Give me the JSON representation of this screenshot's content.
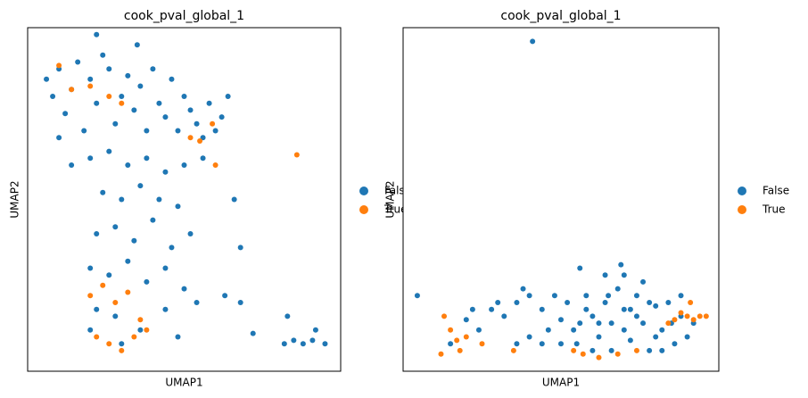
{
  "chart_data": [
    {
      "type": "scatter",
      "title": "cook_pval_global_1",
      "xlabel": "UMAP1",
      "ylabel": "UMAP2",
      "xlim": [
        0,
        100
      ],
      "ylim": [
        0,
        100
      ],
      "legend": "right",
      "series": [
        {
          "name": "False",
          "color": "#1f77b4",
          "x": [
            6,
            8,
            10,
            12,
            14,
            16,
            18,
            20,
            22,
            24,
            26,
            28,
            30,
            32,
            34,
            36,
            38,
            40,
            42,
            44,
            46,
            48,
            50,
            52,
            54,
            56,
            58,
            60,
            62,
            64,
            10,
            14,
            20,
            26,
            32,
            38,
            44,
            50,
            56,
            24,
            30,
            36,
            42,
            48,
            22,
            28,
            34,
            40,
            46,
            52,
            20,
            26,
            32,
            38,
            44,
            50,
            22,
            28,
            36,
            44,
            30,
            20,
            48,
            54,
            35,
            22,
            66,
            68,
            72,
            82,
            85,
            88,
            91,
            95,
            83,
            92,
            63,
            68
          ],
          "values": [
            85,
            80,
            88,
            75,
            82,
            90,
            70,
            85,
            78,
            92,
            88,
            72,
            80,
            86,
            76,
            83,
            70,
            88,
            78,
            74,
            85,
            70,
            80,
            76,
            72,
            68,
            78,
            70,
            74,
            80,
            68,
            60,
            62,
            64,
            60,
            62,
            58,
            60,
            62,
            52,
            50,
            54,
            50,
            48,
            40,
            42,
            38,
            44,
            36,
            40,
            30,
            28,
            32,
            26,
            30,
            24,
            18,
            16,
            12,
            18,
            8,
            12,
            10,
            20,
            95,
            98,
            50,
            36,
            11,
            8,
            9,
            8,
            9,
            8,
            16,
            12,
            22,
            20
          ]
        },
        {
          "name": "True",
          "color": "#ff7f0e",
          "x": [
            10,
            14,
            26,
            20,
            30,
            52,
            55,
            60,
            59,
            86,
            20,
            24,
            28,
            32,
            22,
            26,
            34,
            38,
            36,
            30
          ],
          "values": [
            89,
            82,
            80,
            83,
            78,
            68,
            67,
            60,
            72,
            63,
            22,
            25,
            20,
            23,
            10,
            8,
            10,
            12,
            15,
            6
          ]
        }
      ]
    },
    {
      "type": "scatter",
      "title": "cook_pval_global_1",
      "xlabel": "UMAP1",
      "ylabel": "UMAP2",
      "xlim": [
        0,
        100
      ],
      "ylim": [
        0,
        100
      ],
      "legend": "right",
      "series": [
        {
          "name": "False",
          "color": "#1f77b4",
          "x": [
            4.5,
            41,
            20,
            24,
            28,
            32,
            36,
            40,
            44,
            46,
            50,
            52,
            55,
            58,
            60,
            62,
            64,
            66,
            68,
            70,
            72,
            74,
            76,
            78,
            80,
            82,
            84,
            86,
            88,
            90,
            92,
            56,
            60,
            66,
            70,
            74,
            78,
            82,
            88,
            76,
            70,
            65,
            48,
            38,
            30,
            22,
            15,
            56,
            64,
            69,
            72,
            85,
            80,
            62,
            58,
            54,
            50,
            44,
            40,
            36
          ],
          "values": [
            22,
            96,
            15,
            12,
            18,
            16,
            20,
            22,
            18,
            12,
            15,
            20,
            8,
            22,
            16,
            10,
            20,
            14,
            24,
            18,
            9,
            22,
            14,
            6,
            19,
            12,
            20,
            8,
            16,
            10,
            14,
            14,
            6,
            6,
            12,
            16,
            20,
            6,
            22,
            26,
            28,
            22,
            22,
            24,
            20,
            18,
            8,
            30,
            28,
            31,
            18,
            14,
            10,
            14,
            18,
            12,
            8,
            8,
            10,
            8
          ]
        },
        {
          "name": "True",
          "color": "#ff7f0e",
          "x": [
            13,
            15,
            17,
            12,
            18,
            20,
            25,
            35,
            54,
            57,
            62,
            68,
            74,
            86,
            88,
            90,
            92,
            94,
            96,
            84,
            91
          ],
          "values": [
            16,
            12,
            9,
            5,
            6,
            10,
            8,
            6,
            6,
            5,
            4,
            5,
            6,
            15,
            17,
            16,
            15,
            16,
            16,
            14,
            20
          ]
        }
      ]
    }
  ]
}
